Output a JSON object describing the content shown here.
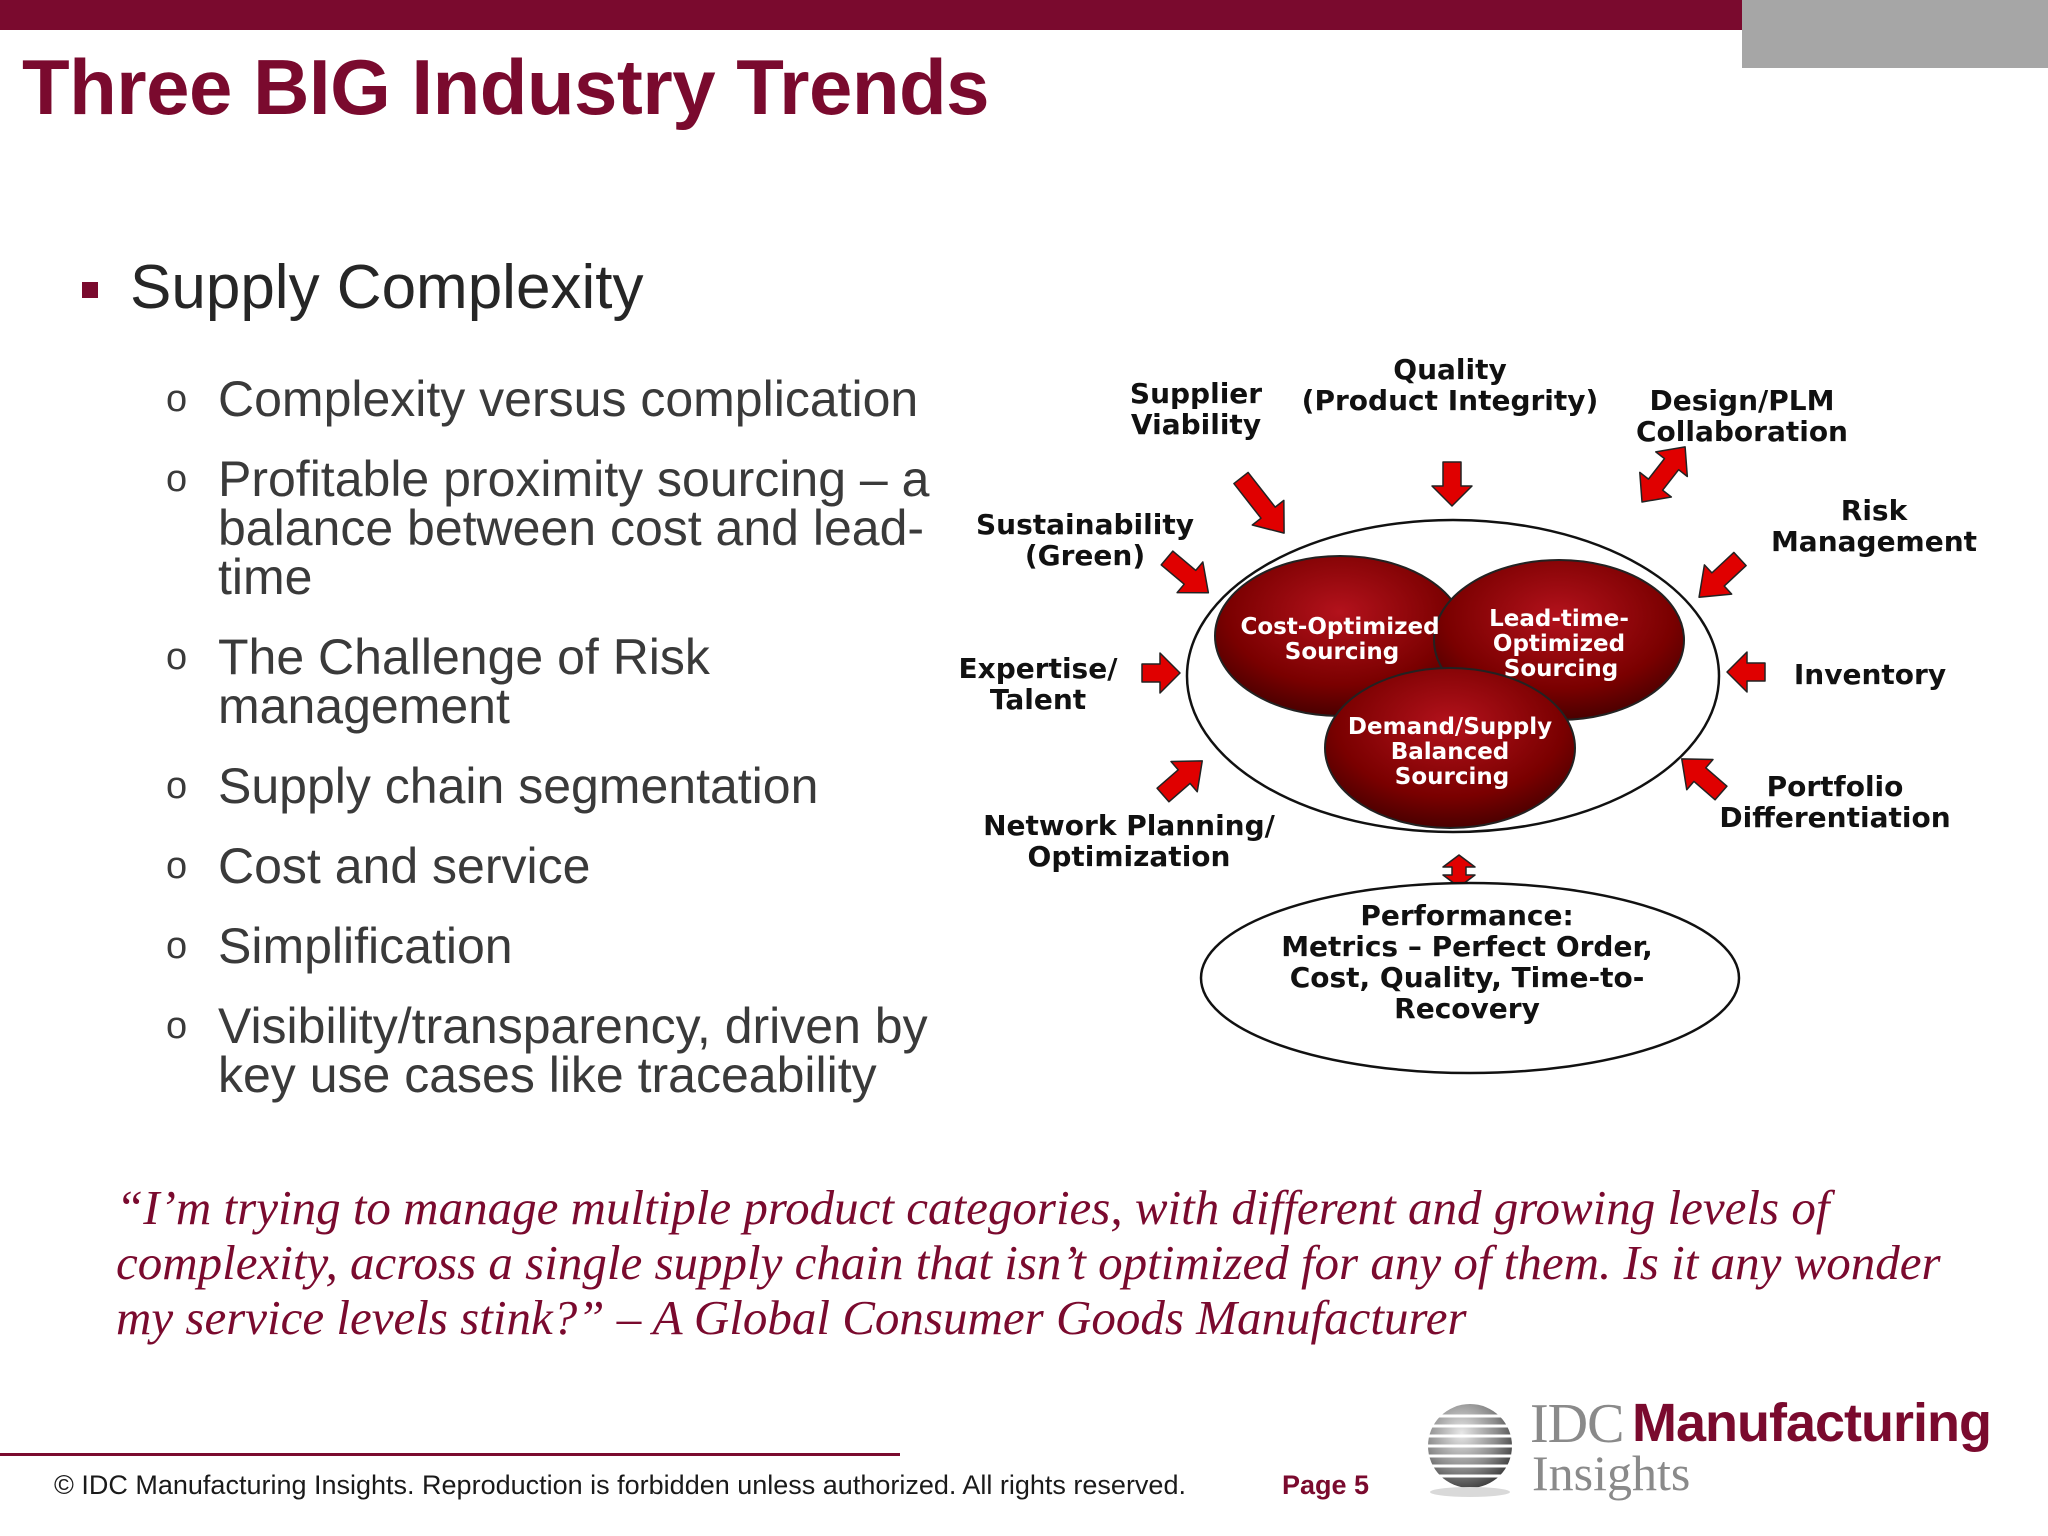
{
  "header": {
    "title": "Three BIG Industry Trends",
    "accent_color": "#7a0a2e",
    "side_block_color": "#a6a6a6"
  },
  "bullets": {
    "main": "Supply Complexity",
    "marker_icon": "square-bullet",
    "sub_marker": "o",
    "items": [
      "Complexity versus complication",
      "Profitable proximity sourcing – a balance between cost and lead-time",
      "The Challenge of Risk management",
      "Supply chain segmentation",
      "Cost and service",
      "Simplification",
      "Visibility/transparency, driven by key use cases like traceability"
    ]
  },
  "diagram": {
    "center_circles": [
      "Cost-Optimized Sourcing",
      "Lead-time-Optimized Sourcing",
      "Demand/Supply Balanced Sourcing"
    ],
    "center_circles_lines": [
      [
        "Cost-Optimized",
        "Sourcing"
      ],
      [
        "Lead-time-",
        "Optimized",
        "Sourcing"
      ],
      [
        "Demand/Supply",
        "Balanced",
        "Sourcing"
      ]
    ],
    "factors": [
      {
        "lines": [
          "Supplier",
          "Viability"
        ]
      },
      {
        "lines": [
          "Quality",
          "(Product Integrity)"
        ]
      },
      {
        "lines": [
          "Design/PLM",
          "Collaboration"
        ]
      },
      {
        "lines": [
          "Risk",
          "Management"
        ]
      },
      {
        "lines": [
          "Sustainability",
          "(Green)"
        ]
      },
      {
        "lines": [
          "Inventory"
        ]
      },
      {
        "lines": [
          "Expertise/",
          "Talent"
        ]
      },
      {
        "lines": [
          "Portfolio",
          "Differentiation"
        ]
      },
      {
        "lines": [
          "Network Planning/",
          "Optimization"
        ]
      }
    ],
    "performance_lines": [
      "Performance:",
      "Metrics – Perfect Order,",
      "Cost, Quality, Time-to-",
      "Recovery"
    ],
    "arrow_color": "#e00000",
    "circle_color": "#7a0000"
  },
  "quote": {
    "text": "“I’m trying to manage multiple product categories, with different and growing levels of complexity, across a single supply chain that isn’t optimized for any of them.  Is it any wonder my service levels stink?” – A Global Consumer Goods Manufacturer"
  },
  "footer": {
    "copyright": "© IDC Manufacturing Insights. Reproduction is forbidden unless authorized. All rights reserved.",
    "page": "Page 5",
    "logo_idc": "IDC",
    "logo_manufacturing": "Manufacturing",
    "logo_insights": "Insights"
  }
}
